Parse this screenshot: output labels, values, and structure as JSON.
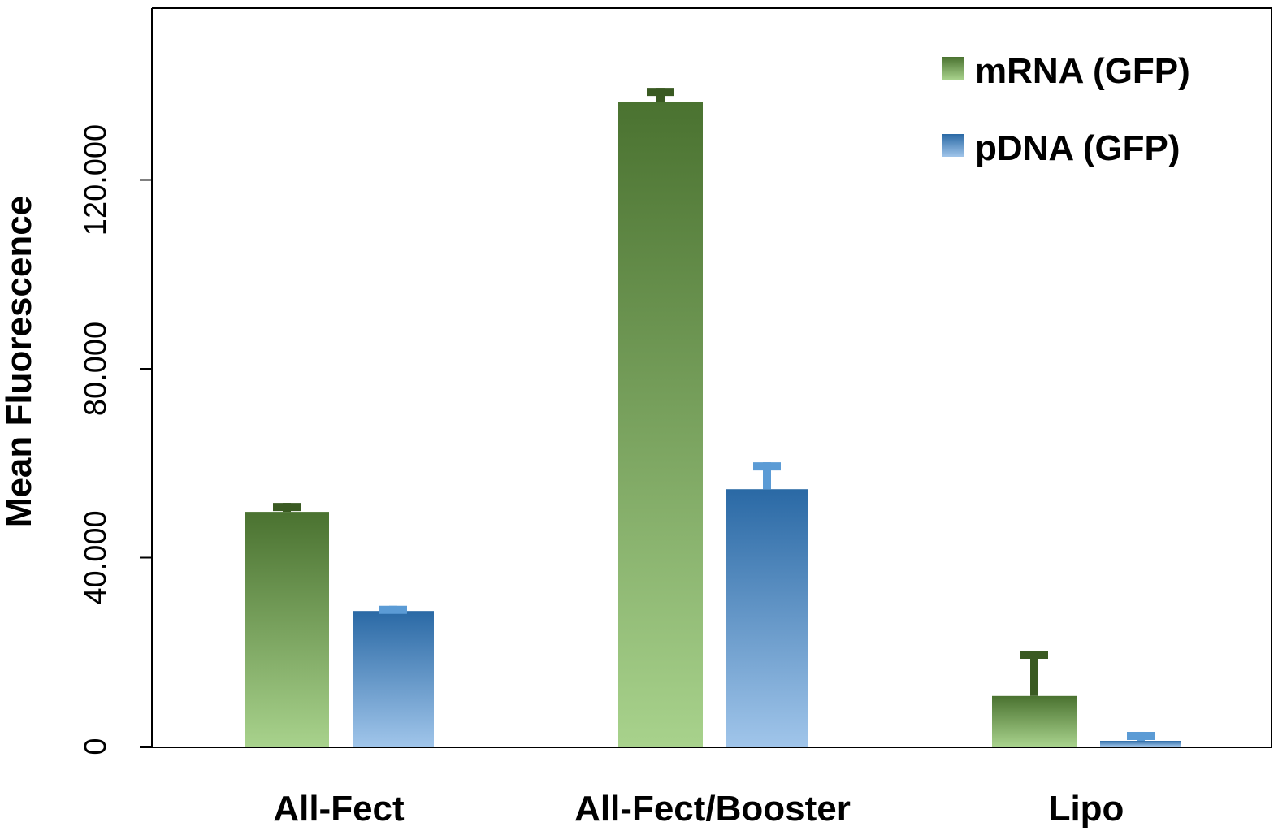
{
  "chart_data": {
    "type": "bar",
    "title": "",
    "xlabel": "",
    "ylabel": "Mean Fluorescence",
    "ylim": [
      0,
      155000
    ],
    "yticks": [
      0,
      40000,
      80000,
      120000
    ],
    "ytick_labels": [
      "0",
      "40.000",
      "80.000",
      "120.000"
    ],
    "categories": [
      "All-Fect",
      "All-Fect/Booster",
      "Lipo"
    ],
    "legend_position": "top-right",
    "series": [
      {
        "name": "mRNA (GFP)",
        "values": [
          49700,
          136600,
          10700
        ],
        "error_upper": [
          51600,
          139500,
          20300
        ],
        "color_top": "#4a7230",
        "color_bottom": "#a8d28c",
        "error_color": "#3a5a22"
      },
      {
        "name": "pDNA (GFP)",
        "values": [
          28700,
          54500,
          1200
        ],
        "error_upper": [
          29800,
          60200,
          3100
        ],
        "color_top": "#2a69a5",
        "color_bottom": "#a0c5ea",
        "error_color": "#5b9bd5"
      }
    ]
  }
}
